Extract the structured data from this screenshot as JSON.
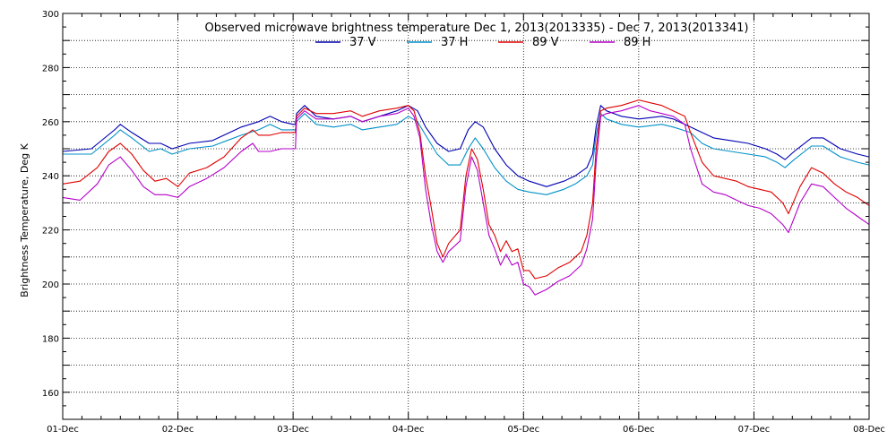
{
  "chart_data": {
    "type": "line",
    "title": "Observed microwave brightness temperature Dec  1, 2013(2013335) - Dec  7, 2013(2013341)",
    "xlabel": "",
    "ylabel": "Brightness Temperature, Deg K",
    "xlim": [
      0,
      7
    ],
    "ylim": [
      150,
      300
    ],
    "x_ticks": [
      {
        "value": 0,
        "label": "01-Dec"
      },
      {
        "value": 1,
        "label": "02-Dec"
      },
      {
        "value": 2,
        "label": "03-Dec"
      },
      {
        "value": 3,
        "label": "04-Dec"
      },
      {
        "value": 4,
        "label": "05-Dec"
      },
      {
        "value": 5,
        "label": "06-Dec"
      },
      {
        "value": 6,
        "label": "07-Dec"
      },
      {
        "value": 7,
        "label": "08-Dec"
      }
    ],
    "y_ticks": [
      160,
      180,
      200,
      220,
      240,
      260,
      280,
      300
    ],
    "grid": "dotted",
    "legend_position": "top-center",
    "series": [
      {
        "name": "37 V",
        "color": "#0000b4",
        "points": [
          [
            0,
            249
          ],
          [
            0.25,
            250
          ],
          [
            0.45,
            257
          ],
          [
            0.5,
            259
          ],
          [
            0.6,
            256
          ],
          [
            0.75,
            252
          ],
          [
            0.85,
            252
          ],
          [
            0.95,
            250
          ],
          [
            1.1,
            252
          ],
          [
            1.3,
            253
          ],
          [
            1.55,
            258
          ],
          [
            1.7,
            260
          ],
          [
            1.8,
            262
          ],
          [
            1.9,
            260
          ],
          [
            2.0,
            259
          ],
          [
            2.02,
            259
          ],
          [
            2.03,
            263
          ],
          [
            2.1,
            266
          ],
          [
            2.2,
            262
          ],
          [
            2.35,
            261
          ],
          [
            2.5,
            262
          ],
          [
            2.6,
            260
          ],
          [
            2.75,
            262
          ],
          [
            2.9,
            264
          ],
          [
            3.0,
            266
          ],
          [
            3.08,
            264
          ],
          [
            3.15,
            258
          ],
          [
            3.25,
            252
          ],
          [
            3.35,
            249
          ],
          [
            3.45,
            250
          ],
          [
            3.52,
            257
          ],
          [
            3.58,
            260
          ],
          [
            3.65,
            258
          ],
          [
            3.75,
            250
          ],
          [
            3.85,
            244
          ],
          [
            3.95,
            240
          ],
          [
            4.05,
            238
          ],
          [
            4.2,
            236
          ],
          [
            4.35,
            238
          ],
          [
            4.45,
            240
          ],
          [
            4.55,
            243
          ],
          [
            4.6,
            248
          ],
          [
            4.63,
            258
          ],
          [
            4.67,
            266
          ],
          [
            4.72,
            264
          ],
          [
            4.85,
            262
          ],
          [
            5.0,
            261
          ],
          [
            5.2,
            262
          ],
          [
            5.3,
            261
          ],
          [
            5.45,
            258
          ],
          [
            5.55,
            256
          ],
          [
            5.65,
            254
          ],
          [
            5.8,
            253
          ],
          [
            5.95,
            252
          ],
          [
            6.1,
            250
          ],
          [
            6.2,
            248
          ],
          [
            6.27,
            246
          ],
          [
            6.35,
            249
          ],
          [
            6.5,
            254
          ],
          [
            6.6,
            254
          ],
          [
            6.75,
            250
          ],
          [
            6.9,
            248
          ],
          [
            7.0,
            247
          ]
        ]
      },
      {
        "name": "37 H",
        "color": "#0090c8",
        "points": [
          [
            0,
            248
          ],
          [
            0.25,
            248
          ],
          [
            0.45,
            255
          ],
          [
            0.5,
            257
          ],
          [
            0.6,
            254
          ],
          [
            0.75,
            249
          ],
          [
            0.85,
            250
          ],
          [
            0.95,
            248
          ],
          [
            1.1,
            250
          ],
          [
            1.3,
            251
          ],
          [
            1.55,
            255
          ],
          [
            1.7,
            257
          ],
          [
            1.8,
            259
          ],
          [
            1.9,
            257
          ],
          [
            2.0,
            257
          ],
          [
            2.02,
            257
          ],
          [
            2.03,
            260
          ],
          [
            2.1,
            263
          ],
          [
            2.2,
            259
          ],
          [
            2.35,
            258
          ],
          [
            2.5,
            259
          ],
          [
            2.6,
            257
          ],
          [
            2.75,
            258
          ],
          [
            2.9,
            259
          ],
          [
            3.0,
            262
          ],
          [
            3.08,
            260
          ],
          [
            3.15,
            255
          ],
          [
            3.25,
            248
          ],
          [
            3.35,
            244
          ],
          [
            3.45,
            244
          ],
          [
            3.52,
            250
          ],
          [
            3.58,
            254
          ],
          [
            3.65,
            250
          ],
          [
            3.75,
            243
          ],
          [
            3.85,
            238
          ],
          [
            3.95,
            235
          ],
          [
            4.05,
            234
          ],
          [
            4.2,
            233
          ],
          [
            4.35,
            235
          ],
          [
            4.45,
            237
          ],
          [
            4.55,
            240
          ],
          [
            4.6,
            244
          ],
          [
            4.63,
            255
          ],
          [
            4.67,
            263
          ],
          [
            4.72,
            261
          ],
          [
            4.85,
            259
          ],
          [
            5.0,
            258
          ],
          [
            5.2,
            259
          ],
          [
            5.3,
            258
          ],
          [
            5.45,
            256
          ],
          [
            5.55,
            252
          ],
          [
            5.65,
            250
          ],
          [
            5.8,
            249
          ],
          [
            5.95,
            248
          ],
          [
            6.1,
            247
          ],
          [
            6.2,
            245
          ],
          [
            6.27,
            243
          ],
          [
            6.35,
            246
          ],
          [
            6.5,
            251
          ],
          [
            6.6,
            251
          ],
          [
            6.75,
            247
          ],
          [
            6.9,
            245
          ],
          [
            7.0,
            244
          ]
        ]
      },
      {
        "name": "89 V",
        "color": "#e00000",
        "points": [
          [
            0,
            237
          ],
          [
            0.15,
            238
          ],
          [
            0.3,
            243
          ],
          [
            0.4,
            249
          ],
          [
            0.5,
            252
          ],
          [
            0.6,
            248
          ],
          [
            0.7,
            242
          ],
          [
            0.8,
            238
          ],
          [
            0.9,
            239
          ],
          [
            1.0,
            236
          ],
          [
            1.1,
            241
          ],
          [
            1.25,
            243
          ],
          [
            1.4,
            247
          ],
          [
            1.55,
            254
          ],
          [
            1.65,
            257
          ],
          [
            1.7,
            255
          ],
          [
            1.8,
            255
          ],
          [
            1.9,
            256
          ],
          [
            2.0,
            256
          ],
          [
            2.02,
            256
          ],
          [
            2.03,
            262
          ],
          [
            2.1,
            265
          ],
          [
            2.2,
            263
          ],
          [
            2.35,
            263
          ],
          [
            2.5,
            264
          ],
          [
            2.6,
            262
          ],
          [
            2.75,
            264
          ],
          [
            2.9,
            265
          ],
          [
            3.0,
            266
          ],
          [
            3.05,
            264
          ],
          [
            3.1,
            256
          ],
          [
            3.15,
            240
          ],
          [
            3.2,
            228
          ],
          [
            3.25,
            215
          ],
          [
            3.3,
            210
          ],
          [
            3.35,
            215
          ],
          [
            3.45,
            220
          ],
          [
            3.5,
            240
          ],
          [
            3.55,
            250
          ],
          [
            3.6,
            246
          ],
          [
            3.65,
            235
          ],
          [
            3.7,
            222
          ],
          [
            3.75,
            218
          ],
          [
            3.8,
            212
          ],
          [
            3.85,
            216
          ],
          [
            3.9,
            212
          ],
          [
            3.95,
            213
          ],
          [
            4.0,
            205
          ],
          [
            4.05,
            205
          ],
          [
            4.1,
            202
          ],
          [
            4.2,
            203
          ],
          [
            4.3,
            206
          ],
          [
            4.4,
            208
          ],
          [
            4.5,
            212
          ],
          [
            4.55,
            218
          ],
          [
            4.6,
            230
          ],
          [
            4.63,
            250
          ],
          [
            4.67,
            264
          ],
          [
            4.72,
            265
          ],
          [
            4.85,
            266
          ],
          [
            5.0,
            268
          ],
          [
            5.1,
            267
          ],
          [
            5.2,
            266
          ],
          [
            5.3,
            264
          ],
          [
            5.4,
            262
          ],
          [
            5.45,
            256
          ],
          [
            5.55,
            245
          ],
          [
            5.65,
            240
          ],
          [
            5.75,
            239
          ],
          [
            5.85,
            238
          ],
          [
            5.95,
            236
          ],
          [
            6.05,
            235
          ],
          [
            6.15,
            234
          ],
          [
            6.25,
            230
          ],
          [
            6.3,
            226
          ],
          [
            6.4,
            236
          ],
          [
            6.5,
            243
          ],
          [
            6.6,
            241
          ],
          [
            6.7,
            237
          ],
          [
            6.8,
            234
          ],
          [
            6.9,
            232
          ],
          [
            7.0,
            229
          ]
        ]
      },
      {
        "name": "89 H",
        "color": "#b400c8",
        "points": [
          [
            0,
            232
          ],
          [
            0.15,
            231
          ],
          [
            0.3,
            237
          ],
          [
            0.4,
            244
          ],
          [
            0.5,
            247
          ],
          [
            0.6,
            242
          ],
          [
            0.7,
            236
          ],
          [
            0.8,
            233
          ],
          [
            0.9,
            233
          ],
          [
            1.0,
            232
          ],
          [
            1.1,
            236
          ],
          [
            1.25,
            239
          ],
          [
            1.4,
            243
          ],
          [
            1.55,
            249
          ],
          [
            1.65,
            252
          ],
          [
            1.7,
            249
          ],
          [
            1.8,
            249
          ],
          [
            1.9,
            250
          ],
          [
            2.0,
            250
          ],
          [
            2.02,
            250
          ],
          [
            2.03,
            261
          ],
          [
            2.1,
            264
          ],
          [
            2.2,
            261
          ],
          [
            2.35,
            261
          ],
          [
            2.5,
            262
          ],
          [
            2.6,
            260
          ],
          [
            2.75,
            262
          ],
          [
            2.9,
            263
          ],
          [
            3.0,
            265
          ],
          [
            3.05,
            262
          ],
          [
            3.1,
            254
          ],
          [
            3.15,
            235
          ],
          [
            3.2,
            222
          ],
          [
            3.25,
            212
          ],
          [
            3.3,
            208
          ],
          [
            3.35,
            212
          ],
          [
            3.45,
            216
          ],
          [
            3.5,
            236
          ],
          [
            3.55,
            247
          ],
          [
            3.6,
            242
          ],
          [
            3.65,
            230
          ],
          [
            3.7,
            218
          ],
          [
            3.75,
            213
          ],
          [
            3.8,
            207
          ],
          [
            3.85,
            211
          ],
          [
            3.9,
            207
          ],
          [
            3.95,
            208
          ],
          [
            4.0,
            200
          ],
          [
            4.05,
            199
          ],
          [
            4.1,
            196
          ],
          [
            4.2,
            198
          ],
          [
            4.3,
            201
          ],
          [
            4.4,
            203
          ],
          [
            4.5,
            207
          ],
          [
            4.55,
            213
          ],
          [
            4.6,
            224
          ],
          [
            4.63,
            245
          ],
          [
            4.67,
            262
          ],
          [
            4.72,
            263
          ],
          [
            4.85,
            264
          ],
          [
            5.0,
            266
          ],
          [
            5.1,
            264
          ],
          [
            5.2,
            263
          ],
          [
            5.3,
            262
          ],
          [
            5.4,
            259
          ],
          [
            5.45,
            250
          ],
          [
            5.55,
            237
          ],
          [
            5.65,
            234
          ],
          [
            5.75,
            233
          ],
          [
            5.85,
            231
          ],
          [
            5.95,
            229
          ],
          [
            6.05,
            228
          ],
          [
            6.15,
            226
          ],
          [
            6.25,
            222
          ],
          [
            6.3,
            219
          ],
          [
            6.4,
            230
          ],
          [
            6.5,
            237
          ],
          [
            6.6,
            236
          ],
          [
            6.7,
            232
          ],
          [
            6.8,
            228
          ],
          [
            6.9,
            225
          ],
          [
            7.0,
            222
          ]
        ]
      }
    ]
  }
}
